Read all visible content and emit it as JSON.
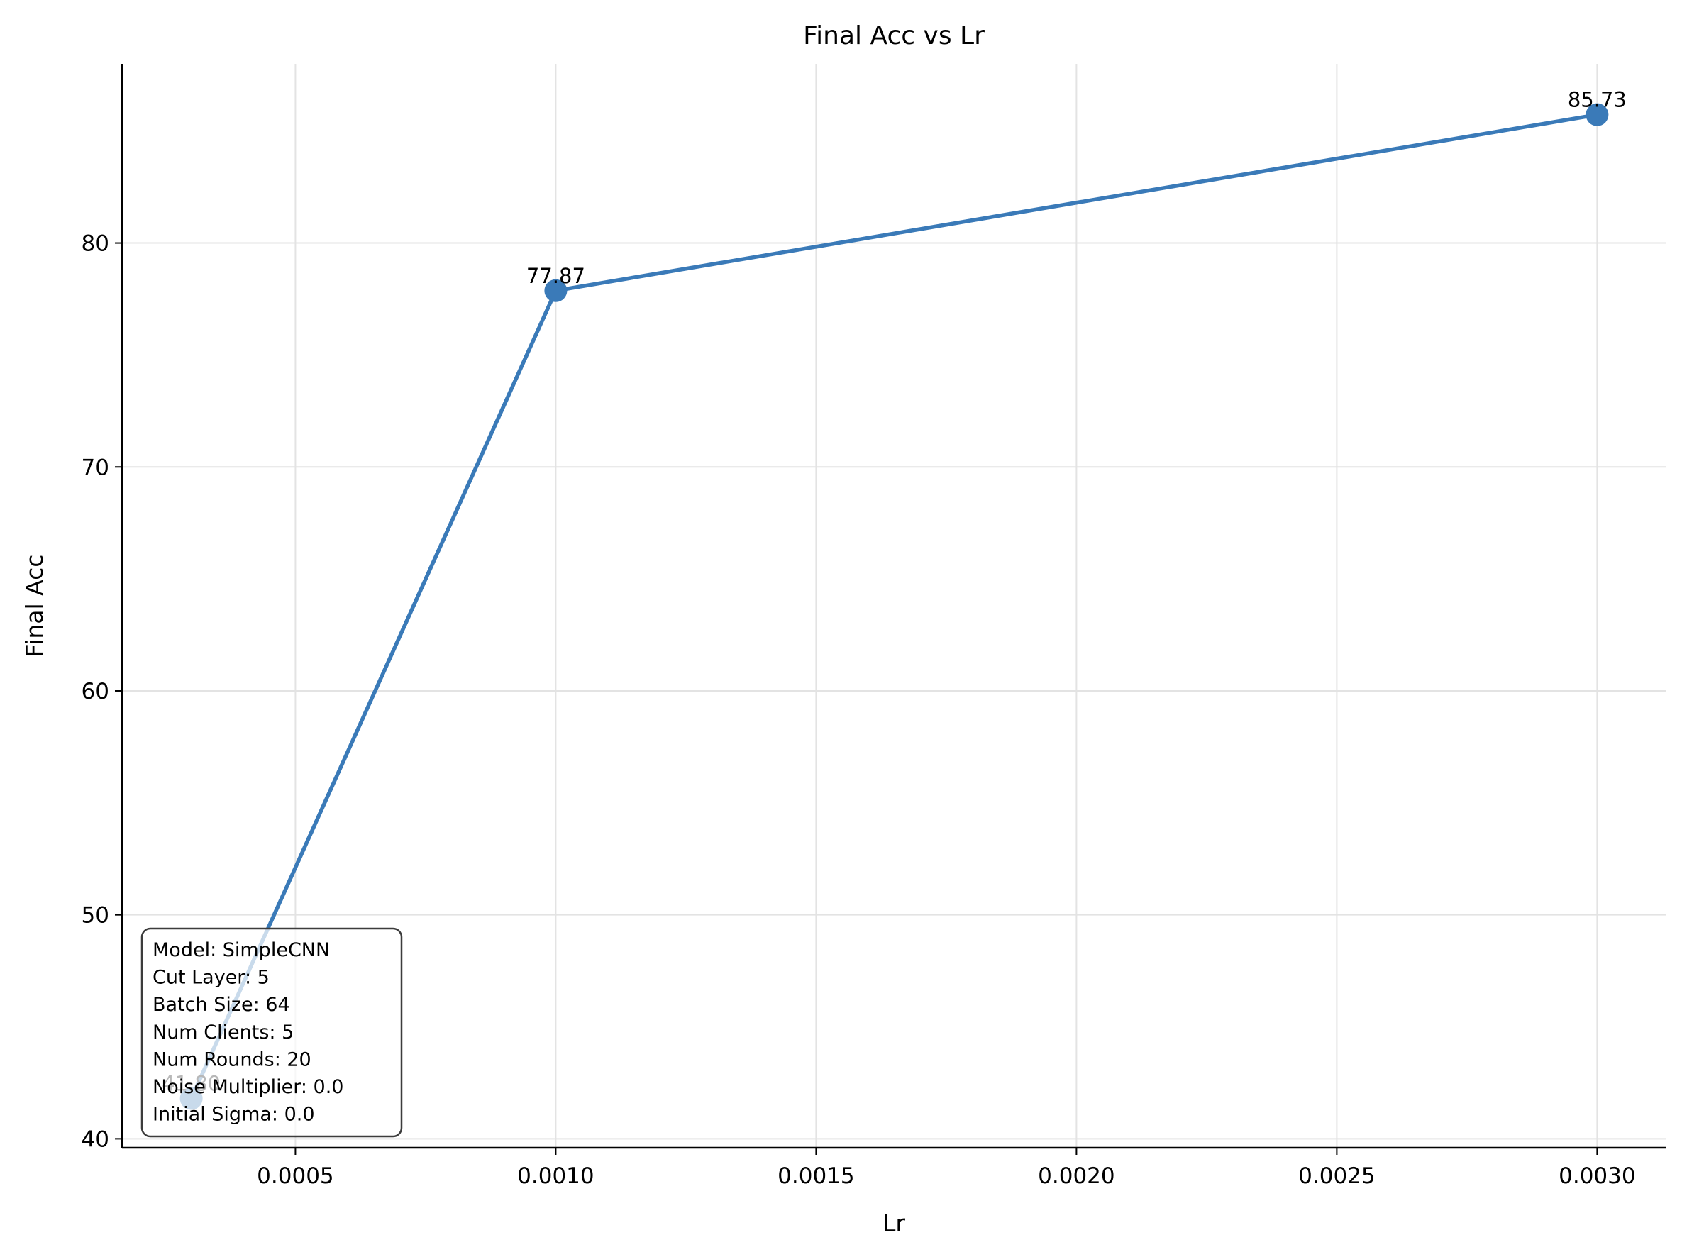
{
  "chart_data": {
    "type": "line",
    "title": "Final Acc vs Lr",
    "xlabel": "Lr",
    "ylabel": "Final Acc",
    "xlim": [
      0.000167,
      0.003133
    ],
    "ylim": [
      39.6,
      88.0
    ],
    "xticks": [
      "0.0005",
      "0.0010",
      "0.0015",
      "0.0020",
      "0.0025",
      "0.0030"
    ],
    "xtick_values": [
      0.0005,
      0.001,
      0.0015,
      0.002,
      0.0025,
      0.003
    ],
    "yticks": [
      "40",
      "50",
      "60",
      "70",
      "80"
    ],
    "ytick_values": [
      40,
      50,
      60,
      70,
      80
    ],
    "grid": true,
    "series": [
      {
        "color": "#3a7ab8",
        "points": [
          {
            "x": 0.0003,
            "y": 41.8,
            "label": "41.80"
          },
          {
            "x": 0.001,
            "y": 77.87,
            "label": "77.87"
          },
          {
            "x": 0.003,
            "y": 85.73,
            "label": "85.73"
          }
        ]
      }
    ],
    "annotation_box": {
      "lines": [
        "Model: SimpleCNN",
        "Cut Layer: 5",
        "Batch Size: 64",
        "Num Clients: 5",
        "Num Rounds: 20",
        "Noise Multiplier: 0.0",
        "Initial Sigma: 0.0"
      ]
    }
  }
}
